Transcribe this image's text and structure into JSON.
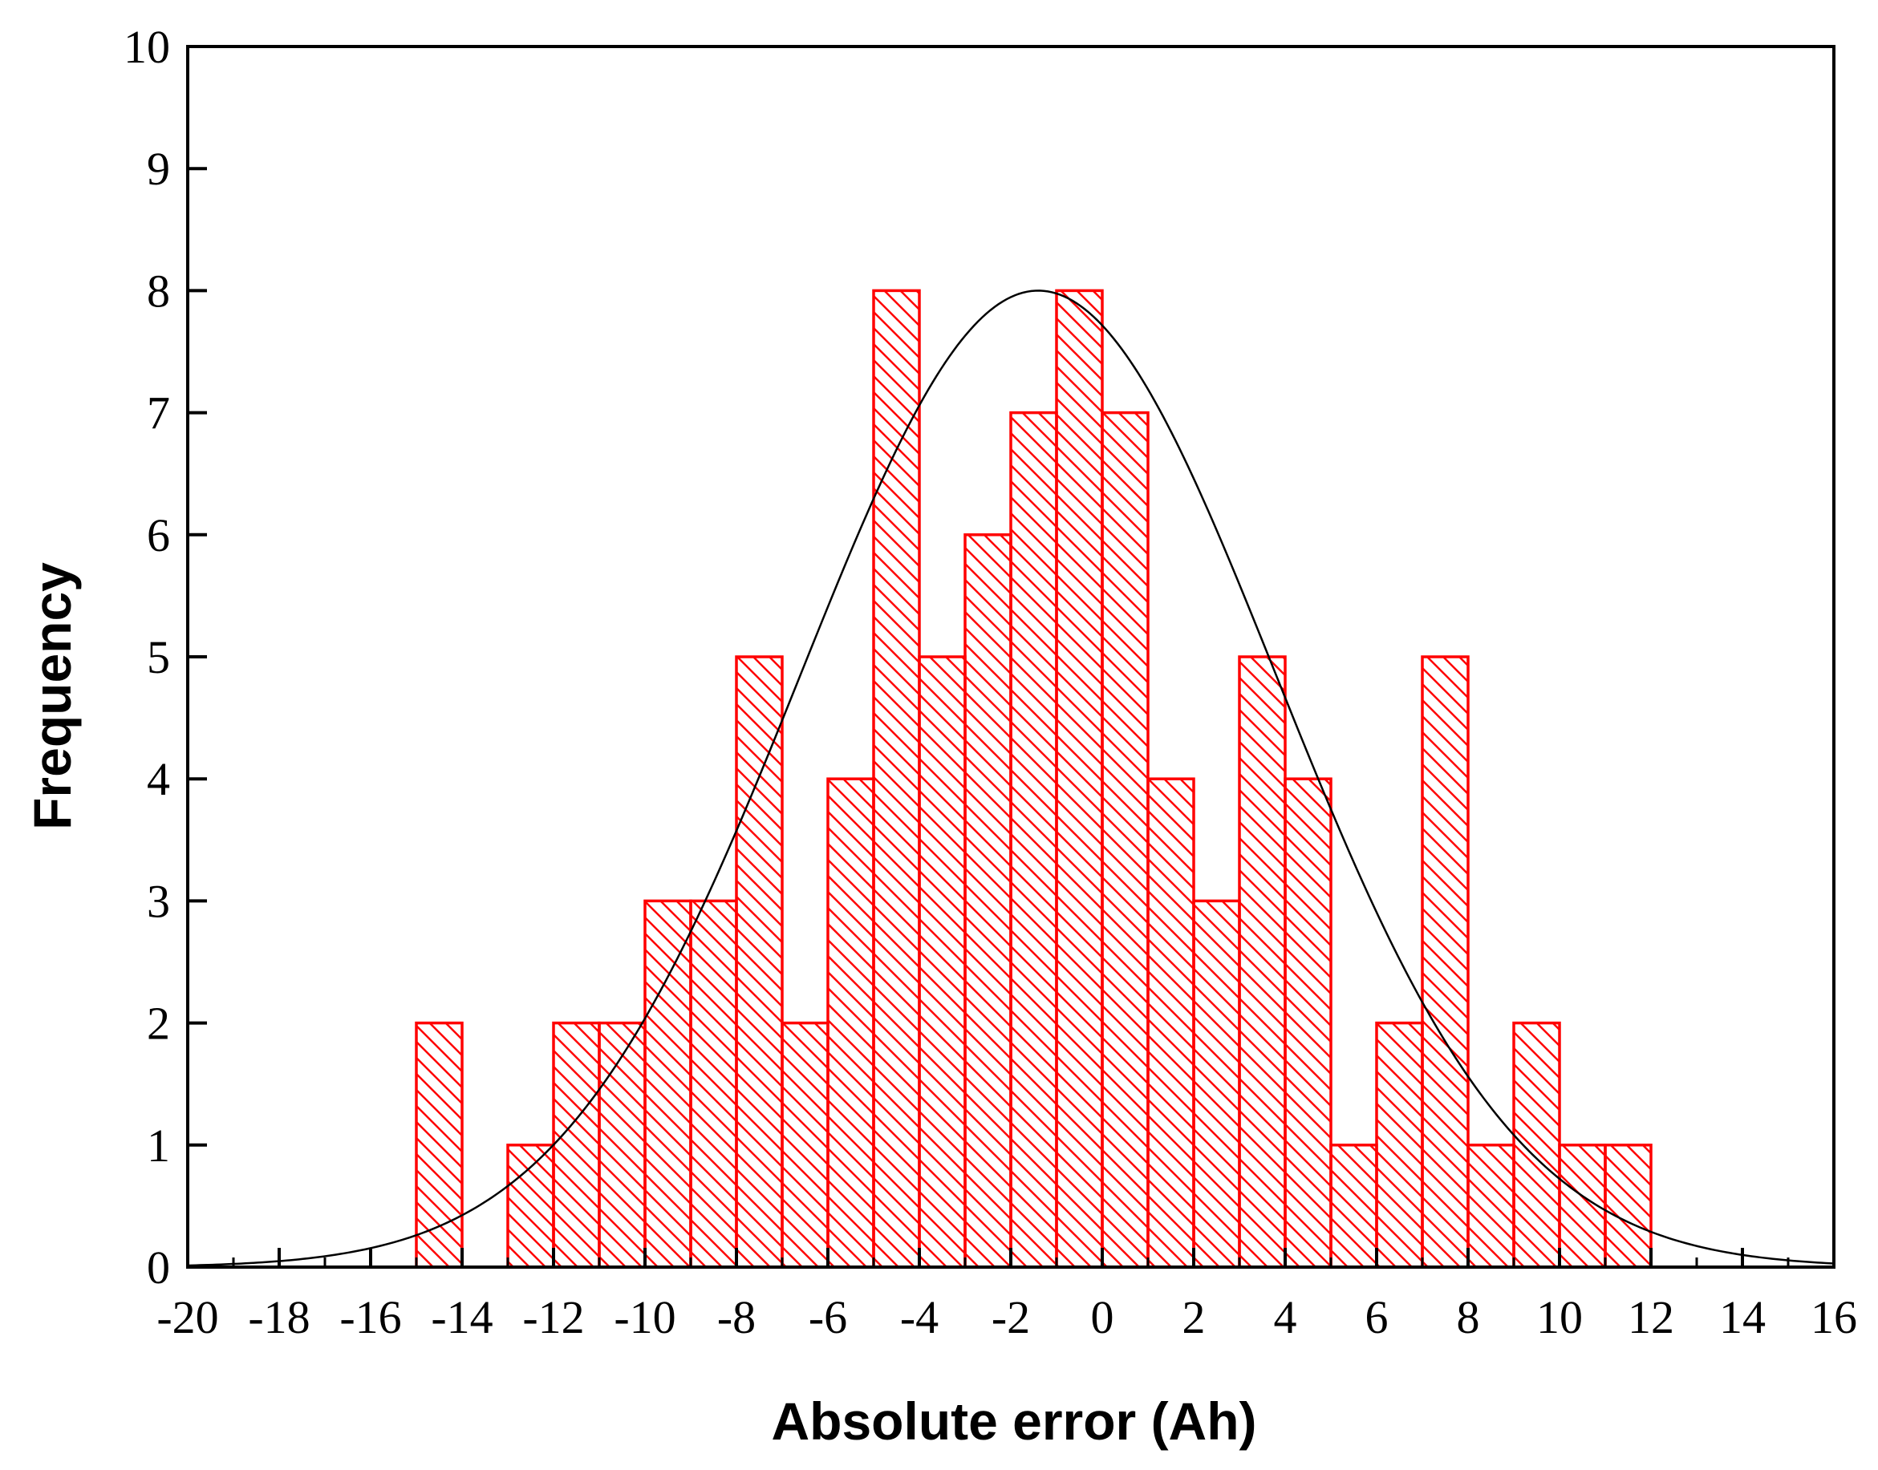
{
  "chart_data": {
    "type": "bar",
    "title": "",
    "xlabel": "Absolute error (Ah)",
    "ylabel": "Frequency",
    "xlim": [
      -20,
      16
    ],
    "ylim": [
      0,
      10
    ],
    "x_ticks": [
      -20,
      -18,
      -16,
      -14,
      -12,
      -10,
      -8,
      -6,
      -4,
      -2,
      0,
      2,
      4,
      6,
      8,
      10,
      12,
      14,
      16
    ],
    "x_tick_labels": [
      "-20",
      "-18",
      "-16",
      "-14",
      "-12",
      "-10",
      "-8",
      "-6",
      "-4",
      "-2",
      "0",
      "2",
      "4",
      "6",
      "8",
      "10",
      "12",
      "14",
      "16"
    ],
    "y_ticks": [
      0,
      1,
      2,
      3,
      4,
      5,
      6,
      7,
      8,
      9,
      10
    ],
    "y_tick_labels": [
      "0",
      "1",
      "2",
      "3",
      "4",
      "5",
      "6",
      "7",
      "8",
      "9",
      "10"
    ],
    "bin_width": 1,
    "bins": [
      {
        "start": -15,
        "count": 2
      },
      {
        "start": -13,
        "count": 1
      },
      {
        "start": -12,
        "count": 2
      },
      {
        "start": -11,
        "count": 2
      },
      {
        "start": -10,
        "count": 3
      },
      {
        "start": -9,
        "count": 3
      },
      {
        "start": -8,
        "count": 5
      },
      {
        "start": -7,
        "count": 2
      },
      {
        "start": -6,
        "count": 4
      },
      {
        "start": -5,
        "count": 8
      },
      {
        "start": -4,
        "count": 5
      },
      {
        "start": -3,
        "count": 6
      },
      {
        "start": -2,
        "count": 7
      },
      {
        "start": -1,
        "count": 8
      },
      {
        "start": 0,
        "count": 7
      },
      {
        "start": 1,
        "count": 4
      },
      {
        "start": 2,
        "count": 3
      },
      {
        "start": 3,
        "count": 5
      },
      {
        "start": 4,
        "count": 4
      },
      {
        "start": 5,
        "count": 1
      },
      {
        "start": 6,
        "count": 2
      },
      {
        "start": 7,
        "count": 5
      },
      {
        "start": 8,
        "count": 1
      },
      {
        "start": 9,
        "count": 2
      },
      {
        "start": 10,
        "count": 1
      },
      {
        "start": 11,
        "count": 1
      }
    ],
    "fit_curve": {
      "type": "normal",
      "mean": -1.4,
      "std": 5.2,
      "peak": 8.0
    },
    "bar_color": "#ff0000",
    "bar_fill": "hatched",
    "curve_color": "#000000",
    "grid": false,
    "legend": "none"
  }
}
